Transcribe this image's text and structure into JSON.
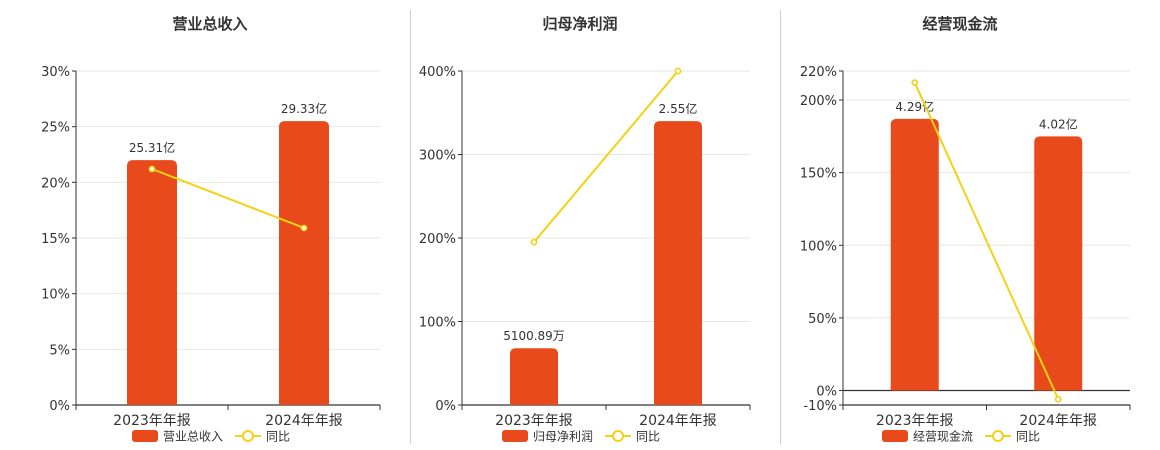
{
  "colors": {
    "bar": "#E84A1C",
    "line": "#F2D214",
    "grid": "#e6e6e6",
    "axis": "#333333",
    "text": "#333333"
  },
  "chart_data": [
    {
      "type": "bar",
      "title": "营业总收入",
      "categories": [
        "2023年年报",
        "2024年年报"
      ],
      "series": [
        {
          "name": "营业总收入",
          "type": "bar",
          "values": [
            25.31,
            29.33
          ],
          "labels": [
            "25.31亿",
            "29.33亿"
          ],
          "axis_values_pct": [
            22.0,
            25.5
          ]
        },
        {
          "name": "同比",
          "type": "line",
          "values": [
            21.2,
            15.9
          ]
        }
      ],
      "yaxis": {
        "min": 0,
        "max": 30,
        "ticks": [
          0,
          5,
          10,
          15,
          20,
          25,
          30
        ],
        "tick_labels": [
          "0%",
          "5%",
          "10%",
          "15%",
          "20%",
          "25%",
          "30%"
        ]
      },
      "grid": true,
      "legend": "bottom"
    },
    {
      "type": "bar",
      "title": "归母净利润",
      "categories": [
        "2023年年报",
        "2024年年报"
      ],
      "series": [
        {
          "name": "归母净利润",
          "type": "bar",
          "values": [
            0.510089,
            2.55
          ],
          "labels": [
            "5100.89万",
            "2.55亿"
          ],
          "axis_values_pct": [
            68,
            340
          ]
        },
        {
          "name": "同比",
          "type": "line",
          "values": [
            195,
            400
          ]
        }
      ],
      "yaxis": {
        "min": 0,
        "max": 400,
        "ticks": [
          0,
          100,
          200,
          300,
          400
        ],
        "tick_labels": [
          "0%",
          "100%",
          "200%",
          "300%",
          "400%"
        ]
      },
      "grid": true,
      "legend": "bottom"
    },
    {
      "type": "bar",
      "title": "经营现金流",
      "categories": [
        "2023年年报",
        "2024年年报"
      ],
      "series": [
        {
          "name": "经营现金流",
          "type": "bar",
          "values": [
            4.29,
            4.02
          ],
          "labels": [
            "4.29亿",
            "4.02亿"
          ],
          "axis_values_pct": [
            187,
            175
          ]
        },
        {
          "name": "同比",
          "type": "line",
          "values": [
            212,
            -6
          ]
        }
      ],
      "yaxis": {
        "min": -10,
        "max": 220,
        "ticks": [
          -10,
          0,
          50,
          100,
          150,
          200,
          220
        ],
        "tick_labels": [
          "-10%",
          "0%",
          "50%",
          "100%",
          "150%",
          "200%",
          "220%"
        ]
      },
      "grid": true,
      "legend": "bottom"
    }
  ]
}
